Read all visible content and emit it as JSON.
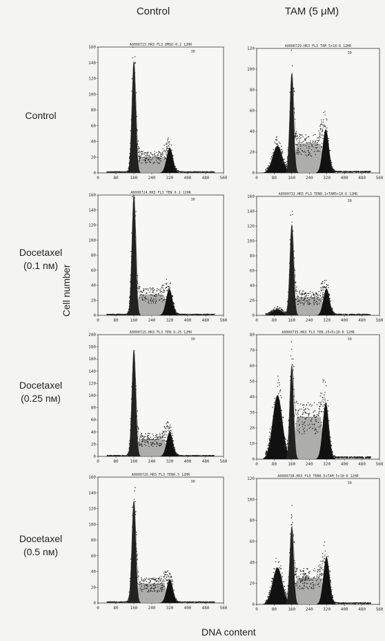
{
  "columns": [
    {
      "label": "Control"
    },
    {
      "label": "TAM (5 μM)"
    }
  ],
  "rows": [
    {
      "line1": "Control",
      "line2": ""
    },
    {
      "line1": "Docetaxel",
      "line2": "(0.1 nм)"
    },
    {
      "line1": "Docetaxel",
      "line2": "(0.25 nм)"
    },
    {
      "line1": "Docetaxel",
      "line2": "(0.5 nм)"
    }
  ],
  "ylabel": "Cell number",
  "xlabel": "DNA content",
  "chart_data": [
    {
      "type": "area",
      "title": "A0000723.HR3 FL3 DMSO 0.2 12HR",
      "corner": "30",
      "ylim": [
        0,
        160
      ],
      "yticks": [
        0,
        20,
        40,
        60,
        80,
        100,
        120,
        140,
        160
      ],
      "xlim": [
        0,
        560
      ],
      "xticks": [
        0,
        80,
        160,
        240,
        320,
        400,
        480,
        560
      ],
      "g1": {
        "pos": 160,
        "height": 142
      },
      "s": {
        "height": 20
      },
      "g2": {
        "pos": 320,
        "height": 32
      },
      "sub_g1": {
        "height": 0
      }
    },
    {
      "type": "area",
      "title": "A0000729.HR3 FL3 TAM 5×10-6 12HR",
      "corner": "30",
      "ylim": [
        0,
        120
      ],
      "yticks": [
        0,
        20,
        40,
        60,
        80,
        100,
        120
      ],
      "xlim": [
        0,
        560
      ],
      "xticks": [
        0,
        80,
        160,
        240,
        320,
        400,
        480,
        560
      ],
      "g1": {
        "pos": 160,
        "height": 96
      },
      "s": {
        "height": 28
      },
      "g2": {
        "pos": 315,
        "height": 42
      },
      "sub_g1": {
        "height": 26
      }
    },
    {
      "type": "area",
      "title": "A0000724.HR3 FL3 TEN 0.1 12HR",
      "corner": "30",
      "ylim": [
        0,
        160
      ],
      "yticks": [
        0,
        20,
        40,
        60,
        80,
        100,
        120,
        140,
        160
      ],
      "xlim": [
        0,
        560
      ],
      "xticks": [
        0,
        80,
        160,
        240,
        320,
        400,
        480,
        560
      ],
      "g1": {
        "pos": 160,
        "height": 160
      },
      "s": {
        "height": 27
      },
      "g2": {
        "pos": 318,
        "height": 35
      },
      "sub_g1": {
        "height": 0
      }
    },
    {
      "type": "area",
      "title": "A0000732.HR3 FL3 TEN0.1+TAM5×10-6 12HR",
      "corner": "30",
      "ylim": [
        0,
        160
      ],
      "yticks": [
        0,
        20,
        40,
        60,
        80,
        100,
        120,
        140,
        160
      ],
      "xlim": [
        0,
        560
      ],
      "xticks": [
        0,
        80,
        160,
        240,
        320,
        400,
        480,
        560
      ],
      "g1": {
        "pos": 160,
        "height": 122
      },
      "s": {
        "height": 24
      },
      "g2": {
        "pos": 318,
        "height": 36
      },
      "sub_g1": {
        "height": 8
      }
    },
    {
      "type": "area",
      "title": "A0000725.HR3 FL3 TEN 0.25 12HR",
      "corner": "30",
      "ylim": [
        0,
        200
      ],
      "yticks": [
        0,
        20,
        40,
        60,
        80,
        100,
        120,
        140,
        160,
        180,
        200
      ],
      "xlim": [
        0,
        560
      ],
      "xticks": [
        0,
        80,
        160,
        240,
        320,
        400,
        480,
        560
      ],
      "g1": {
        "pos": 160,
        "height": 175
      },
      "s": {
        "height": 28
      },
      "g2": {
        "pos": 320,
        "height": 40
      },
      "sub_g1": {
        "height": 0
      }
    },
    {
      "type": "area",
      "title": "A0000735.HR3 FL3 TEN.25+5×10-6 12HR",
      "corner": "30",
      "ylim": [
        0,
        80
      ],
      "yticks": [
        0,
        10,
        20,
        30,
        40,
        50,
        60,
        70,
        80
      ],
      "xlim": [
        0,
        560
      ],
      "xticks": [
        0,
        80,
        160,
        240,
        320,
        400,
        480,
        560
      ],
      "g1": {
        "pos": 160,
        "height": 60
      },
      "s": {
        "height": 27
      },
      "g2": {
        "pos": 315,
        "height": 36
      },
      "sub_g1": {
        "height": 41
      }
    },
    {
      "type": "area",
      "title": "A0000726.HR3 FL3 TEN0.5 12HR",
      "corner": "30",
      "ylim": [
        0,
        160
      ],
      "yticks": [
        0,
        20,
        40,
        60,
        80,
        100,
        120,
        140,
        160
      ],
      "xlim": [
        0,
        560
      ],
      "xticks": [
        0,
        80,
        160,
        240,
        320,
        400,
        480,
        560
      ],
      "g1": {
        "pos": 160,
        "height": 130
      },
      "s": {
        "height": 24
      },
      "g2": {
        "pos": 320,
        "height": 30
      },
      "sub_g1": {
        "height": 0
      }
    },
    {
      "type": "area",
      "title": "A0000738.HR3 FL3 TEN0.5+TAM 5×10-6 12HR",
      "corner": "30",
      "ylim": [
        0,
        120
      ],
      "yticks": [
        0,
        20,
        40,
        60,
        80,
        100,
        120
      ],
      "xlim": [
        0,
        560
      ],
      "xticks": [
        0,
        80,
        160,
        240,
        320,
        400,
        480,
        560
      ],
      "g1": {
        "pos": 160,
        "height": 74
      },
      "s": {
        "height": 25
      },
      "g2": {
        "pos": 318,
        "height": 45
      },
      "sub_g1": {
        "height": 35
      }
    }
  ]
}
